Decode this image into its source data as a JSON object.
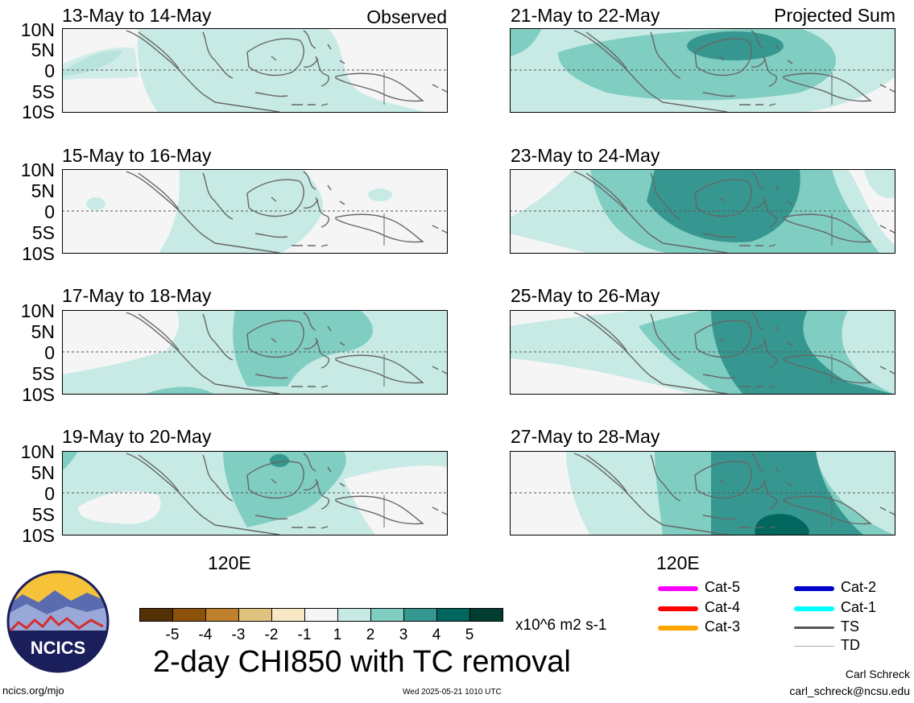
{
  "panels": [
    {
      "title": "13-May to 14-May",
      "tag": "Observed"
    },
    {
      "title": "15-May to 16-May",
      "tag": ""
    },
    {
      "title": "17-May to 18-May",
      "tag": ""
    },
    {
      "title": "19-May to 20-May",
      "tag": ""
    },
    {
      "title": "21-May to 22-May",
      "tag": "Projected Sum"
    },
    {
      "title": "23-May to 24-May",
      "tag": ""
    },
    {
      "title": "25-May to 26-May",
      "tag": ""
    },
    {
      "title": "27-May to 28-May",
      "tag": ""
    }
  ],
  "lat_labels": [
    "10N",
    "5N",
    "0",
    "5S",
    "10S"
  ],
  "lon_label": "120E",
  "colorbar": {
    "ticks": [
      "-5",
      "-4",
      "-3",
      "-2",
      "-1",
      "1",
      "2",
      "3",
      "4",
      "5"
    ],
    "units": "x10^6 m2 s-1",
    "colors": [
      "#543005",
      "#8c510a",
      "#bf812d",
      "#dfc27d",
      "#f6e8c3",
      "#f5f5f5",
      "#c7eae5",
      "#80cdc1",
      "#35978f",
      "#01665e",
      "#003c30"
    ]
  },
  "title": "2-day CHI850 with TC removal",
  "legend": [
    {
      "label": "Cat-5",
      "color": "#ff00ff"
    },
    {
      "label": "Cat-4",
      "color": "#ff0000"
    },
    {
      "label": "Cat-3",
      "color": "#ffa500"
    },
    {
      "label": "Cat-2",
      "color": "#0000cd"
    },
    {
      "label": "Cat-1",
      "color": "#00ffff"
    },
    {
      "label": "TS",
      "color": "#555555"
    },
    {
      "label": "TD",
      "color": "#aaaaaa"
    }
  ],
  "footer": {
    "left": "ncics.org/mjo",
    "center": "Wed 2025-05-21 1010 UTC",
    "author": "Carl Schreck",
    "email": "carl_schreck@ncsu.edu"
  },
  "logo_text": "NCICS"
}
